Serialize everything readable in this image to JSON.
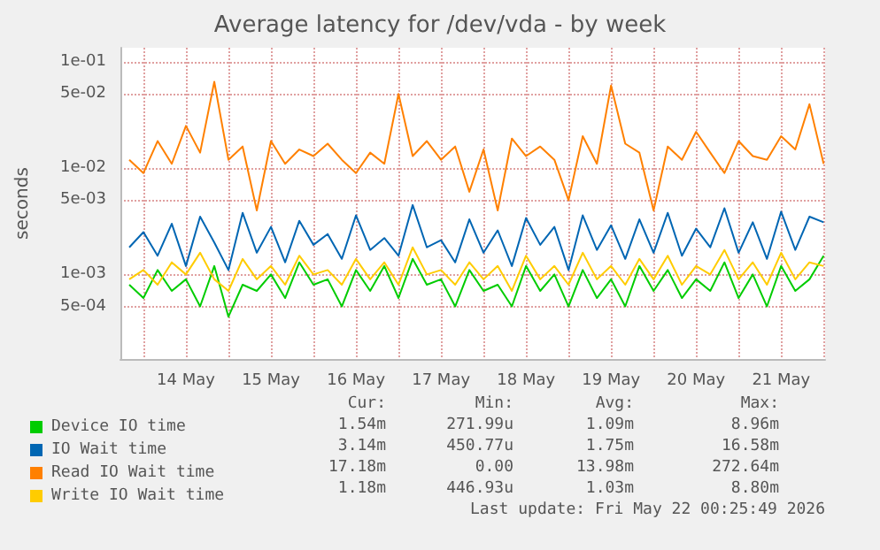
{
  "chart_data": {
    "type": "line",
    "title": "Average latency for /dev/vda - by week",
    "ylabel": "seconds",
    "log": "y",
    "grid": true,
    "legend": "bottom",
    "marker": "none",
    "line_style": "solid",
    "x": [
      "2026-05-13T20:00",
      "2026-05-14T00:00",
      "2026-05-14T04:00",
      "2026-05-14T08:00",
      "2026-05-14T12:00",
      "2026-05-14T16:00",
      "2026-05-14T20:00",
      "2026-05-15T00:00",
      "2026-05-15T04:00",
      "2026-05-15T08:00",
      "2026-05-15T12:00",
      "2026-05-15T16:00",
      "2026-05-15T20:00",
      "2026-05-16T00:00",
      "2026-05-16T04:00",
      "2026-05-16T08:00",
      "2026-05-16T12:00",
      "2026-05-16T16:00",
      "2026-05-16T20:00",
      "2026-05-17T00:00",
      "2026-05-17T04:00",
      "2026-05-17T08:00",
      "2026-05-17T12:00",
      "2026-05-17T16:00",
      "2026-05-17T20:00",
      "2026-05-18T00:00",
      "2026-05-18T04:00",
      "2026-05-18T08:00",
      "2026-05-18T12:00",
      "2026-05-18T16:00",
      "2026-05-18T20:00",
      "2026-05-19T00:00",
      "2026-05-19T04:00",
      "2026-05-19T08:00",
      "2026-05-19T12:00",
      "2026-05-19T16:00",
      "2026-05-19T20:00",
      "2026-05-20T00:00",
      "2026-05-20T04:00",
      "2026-05-20T08:00",
      "2026-05-20T12:00",
      "2026-05-20T16:00",
      "2026-05-20T20:00",
      "2026-05-21T00:00",
      "2026-05-21T04:00",
      "2026-05-21T08:00",
      "2026-05-21T12:00",
      "2026-05-21T16:00",
      "2026-05-21T20:00",
      "2026-05-22T00:00"
    ],
    "xlim": [
      "2026-05-13T17:30",
      "2026-05-22T00:25"
    ],
    "xticks": [
      {
        "value": "2026-05-14T00:00",
        "label": null
      },
      {
        "value": "2026-05-14T12:00",
        "label": "14 May"
      },
      {
        "value": "2026-05-15T00:00",
        "label": null
      },
      {
        "value": "2026-05-15T12:00",
        "label": "15 May"
      },
      {
        "value": "2026-05-16T00:00",
        "label": null
      },
      {
        "value": "2026-05-16T12:00",
        "label": "16 May"
      },
      {
        "value": "2026-05-17T00:00",
        "label": null
      },
      {
        "value": "2026-05-17T12:00",
        "label": "17 May"
      },
      {
        "value": "2026-05-18T00:00",
        "label": null
      },
      {
        "value": "2026-05-18T12:00",
        "label": "18 May"
      },
      {
        "value": "2026-05-19T00:00",
        "label": null
      },
      {
        "value": "2026-05-19T12:00",
        "label": "19 May"
      },
      {
        "value": "2026-05-20T00:00",
        "label": null
      },
      {
        "value": "2026-05-20T12:00",
        "label": "20 May"
      },
      {
        "value": "2026-05-21T00:00",
        "label": null
      },
      {
        "value": "2026-05-21T12:00",
        "label": "21 May"
      },
      {
        "value": "2026-05-22T00:00",
        "label": null
      }
    ],
    "ylim": [
      0.00016,
      0.136
    ],
    "yticks": [
      {
        "value": 0.0005,
        "label": "5e-04"
      },
      {
        "value": 0.001,
        "label": "1e-03"
      },
      {
        "value": 0.005,
        "label": "5e-03"
      },
      {
        "value": 0.01,
        "label": "1e-02"
      },
      {
        "value": 0.05,
        "label": "5e-02"
      },
      {
        "value": 0.1,
        "label": "1e-01"
      }
    ],
    "series": [
      {
        "name": "Device IO time",
        "color": "#00cc00",
        "values": [
          0.0008,
          0.0006,
          0.0011,
          0.0007,
          0.0009,
          0.0005,
          0.0012,
          0.0004,
          0.0008,
          0.0007,
          0.001,
          0.0006,
          0.0013,
          0.0008,
          0.0009,
          0.0005,
          0.0011,
          0.0007,
          0.0012,
          0.0006,
          0.0014,
          0.0008,
          0.0009,
          0.0005,
          0.0011,
          0.0007,
          0.0008,
          0.0005,
          0.0012,
          0.0007,
          0.001,
          0.0005,
          0.0011,
          0.0006,
          0.0009,
          0.0005,
          0.0012,
          0.0007,
          0.0011,
          0.0006,
          0.0009,
          0.0007,
          0.0013,
          0.0006,
          0.001,
          0.0005,
          0.0012,
          0.0007,
          0.0009,
          0.0015
        ]
      },
      {
        "name": "IO Wait time",
        "color": "#0066b3",
        "values": [
          0.0018,
          0.0025,
          0.0015,
          0.003,
          0.0012,
          0.0035,
          0.002,
          0.0011,
          0.0038,
          0.0016,
          0.0028,
          0.0013,
          0.0032,
          0.0019,
          0.0024,
          0.0014,
          0.0036,
          0.0017,
          0.0022,
          0.0015,
          0.0045,
          0.0018,
          0.0021,
          0.0013,
          0.0033,
          0.0016,
          0.0026,
          0.0012,
          0.0034,
          0.0019,
          0.0028,
          0.0011,
          0.0036,
          0.0017,
          0.0029,
          0.0014,
          0.0033,
          0.0016,
          0.0038,
          0.0015,
          0.0027,
          0.0018,
          0.0042,
          0.0016,
          0.0031,
          0.0014,
          0.0039,
          0.0017,
          0.0035,
          0.0031
        ]
      },
      {
        "name": "Read IO Wait time",
        "color": "#ff8000",
        "values": [
          0.012,
          0.009,
          0.018,
          0.011,
          0.025,
          0.014,
          0.065,
          0.012,
          0.016,
          0.004,
          0.018,
          0.011,
          0.015,
          0.013,
          0.017,
          0.012,
          0.009,
          0.014,
          0.011,
          0.05,
          0.013,
          0.018,
          0.012,
          0.016,
          0.006,
          0.015,
          0.004,
          0.019,
          0.013,
          0.016,
          0.012,
          0.005,
          0.02,
          0.011,
          0.06,
          0.017,
          0.014,
          0.004,
          0.016,
          0.012,
          0.022,
          0.014,
          0.009,
          0.018,
          0.013,
          0.012,
          0.02,
          0.015,
          0.04,
          0.011
        ]
      },
      {
        "name": "Write IO Wait time",
        "color": "#ffcc00",
        "values": [
          0.0009,
          0.0011,
          0.0008,
          0.0013,
          0.001,
          0.0016,
          0.0009,
          0.0007,
          0.0014,
          0.0009,
          0.0012,
          0.0008,
          0.0015,
          0.001,
          0.0011,
          0.0008,
          0.0014,
          0.0009,
          0.0013,
          0.0008,
          0.0018,
          0.001,
          0.0011,
          0.0008,
          0.0013,
          0.0009,
          0.0012,
          0.0007,
          0.0015,
          0.0009,
          0.0012,
          0.0008,
          0.0016,
          0.0009,
          0.0012,
          0.0008,
          0.0014,
          0.0009,
          0.0015,
          0.0008,
          0.0012,
          0.001,
          0.0017,
          0.0009,
          0.0013,
          0.0008,
          0.0016,
          0.0009,
          0.0013,
          0.0012
        ]
      }
    ],
    "annotations": [
      "Cur:",
      "Min:",
      "Avg:",
      "Max:",
      "1.54m",
      "271.99u",
      "1.09m",
      "8.96m",
      "3.14m",
      "450.77u",
      "1.75m",
      "16.58m",
      "17.18m",
      "0.00",
      "13.98m",
      "272.64m",
      "1.18m",
      "446.93u",
      "1.03m",
      "8.80m",
      "Last update: Fri May 22 00:25:49 2026"
    ]
  }
}
